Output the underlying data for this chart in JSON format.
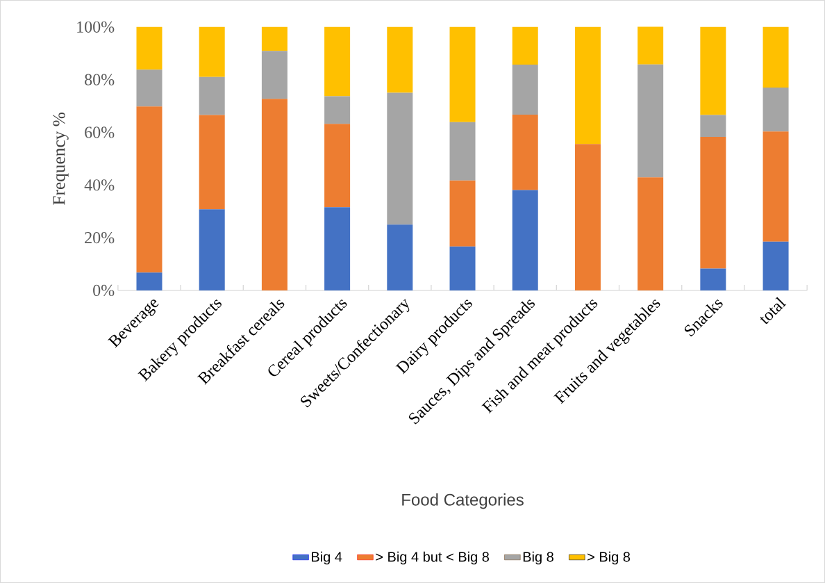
{
  "chart_data": {
    "type": "bar",
    "stacked": true,
    "xlabel": "Food Categories",
    "ylabel": "Frequency %",
    "categories": [
      "Beverage",
      "Bakery products",
      "Breakfast cereals",
      "Cereal products",
      "Sweets/Confectionary",
      "Dairy products",
      "Sauces, Dips and Spreads",
      "Fish and meat products",
      "Fruits and vegetables",
      "Snacks",
      "total"
    ],
    "series": [
      {
        "name": "Big 4",
        "color": "#4472c4",
        "values": [
          6.8,
          30.8,
          0,
          31.6,
          25,
          16.7,
          38.1,
          0,
          0,
          8.3,
          18.5
        ]
      },
      {
        "name": "> Big 4 but < Big 8",
        "color": "#ed7d31",
        "values": [
          63,
          35.8,
          72.7,
          31.6,
          0,
          25,
          28.6,
          55.6,
          42.9,
          50,
          41.8
        ]
      },
      {
        "name": "Big 8",
        "color": "#a5a5a5",
        "values": [
          14,
          14.4,
          18.2,
          10.5,
          50,
          22.2,
          19,
          0,
          42.9,
          8.3,
          16.7
        ]
      },
      {
        "name": "> Big 8",
        "color": "#ffc000",
        "values": [
          16.2,
          19,
          9.1,
          26.3,
          25,
          36.1,
          14.3,
          44.4,
          14.3,
          33.4,
          23
        ]
      }
    ],
    "ylim": [
      0,
      100
    ],
    "yticks": [
      {
        "value": 0,
        "label": "0%"
      },
      {
        "value": 20,
        "label": "20%"
      },
      {
        "value": 40,
        "label": "40%"
      },
      {
        "value": 60,
        "label": "60%"
      },
      {
        "value": 80,
        "label": "80%"
      },
      {
        "value": 100,
        "label": "100%"
      }
    ],
    "grid": false,
    "legend": "bottom"
  }
}
